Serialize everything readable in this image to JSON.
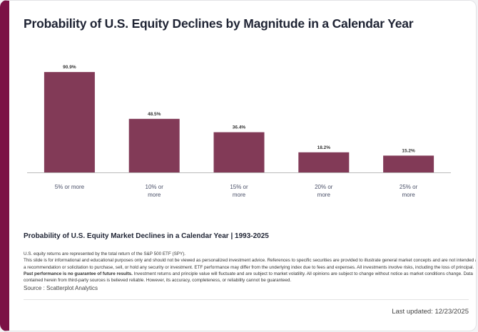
{
  "title": "Probability of U.S. Equity Declines by Magnitude in a Calendar Year",
  "colors": {
    "bar": "#823a57",
    "accent": "#7b1145",
    "axis": "#bbbbbb"
  },
  "chart_data": {
    "type": "bar",
    "categories": [
      [
        "5% or more"
      ],
      [
        "10% or",
        "more"
      ],
      [
        "15% or",
        "more"
      ],
      [
        "20% or",
        "more"
      ],
      [
        "25% or",
        "more"
      ]
    ],
    "values": [
      90.9,
      48.5,
      36.4,
      18.2,
      15.2
    ],
    "data_labels": [
      "90.9%",
      "48.5%",
      "36.4%",
      "18.2%",
      "15.2%"
    ],
    "ylim": [
      0,
      100
    ],
    "grid": false,
    "legend": "none"
  },
  "subtitle": "Probability of U.S. Equity Market Declines in a Calendar Year | 1993-2025",
  "disclaimer": {
    "line1": "U.S. equity returns are represented by the total return of the S&P 500 ETF (SPY).",
    "text_a": "This slide is for informational and educational purposes only and should not be viewed as personalized investment advice. References to specific securities are provided to illustrate general market concepts and are not intended as a recommendation or solicitation to purchase, sell, or hold any security or investment. ETF performance may differ from the underlying index due to fees and expenses. All investments involve risks, including the loss of principal. ",
    "bold": "Past performance is no guarantee of future results.",
    "text_b": " Investment returns and principle value will fluctuate and are subject to market volatility. All opinions are subject to change without notice as market conditions change. Data contained herein from third-party sources is believed reliable. However, its accuracy, completeness, or reliability cannot be guaranteed."
  },
  "source": "Source : Scatterplot Analytics",
  "last_updated": "Last updated: 12/23/2025"
}
